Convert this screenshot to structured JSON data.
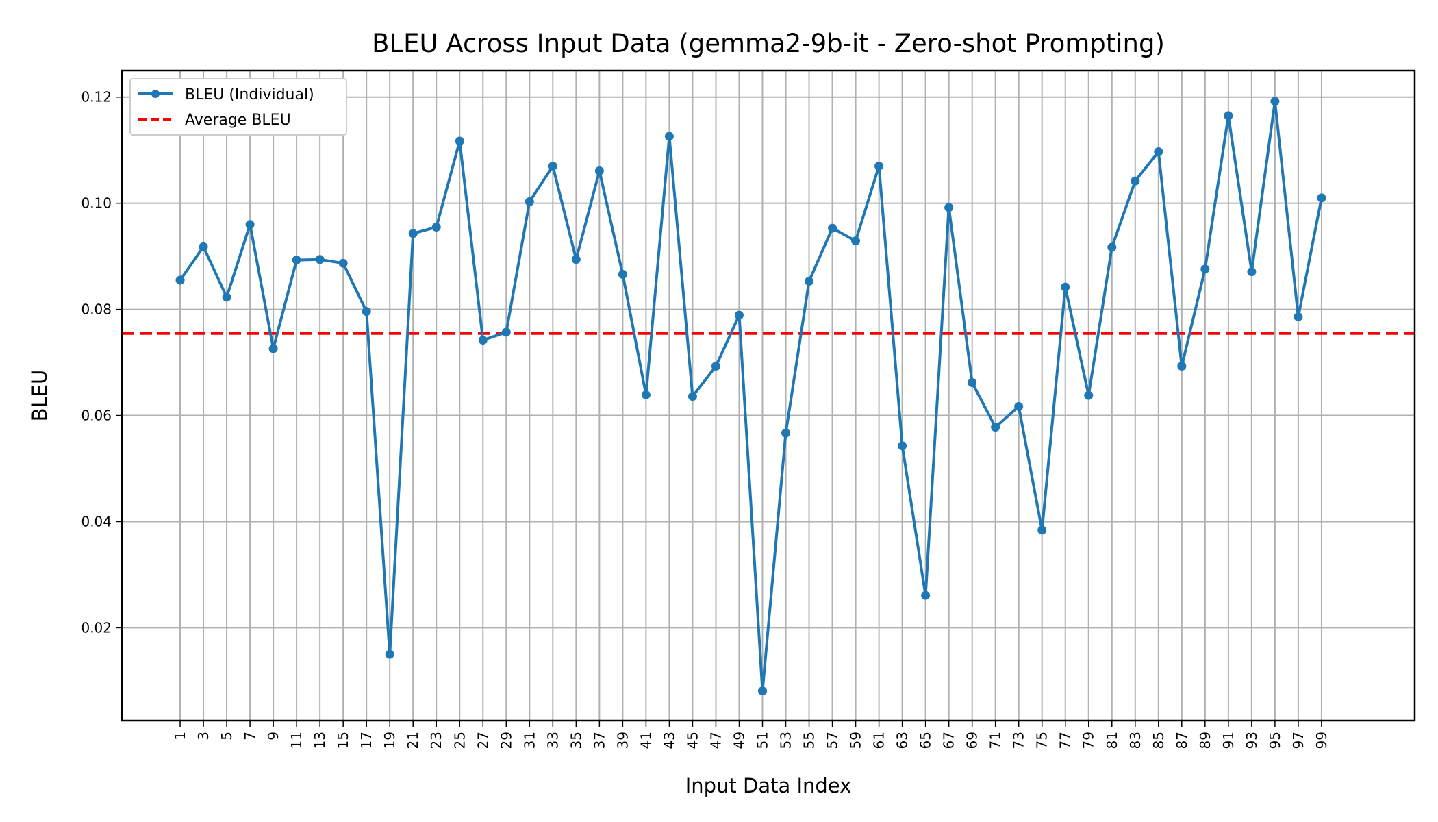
{
  "chart_data": {
    "type": "line",
    "title": "BLEU Across Input Data (gemma2-9b-it - Zero-shot Prompting)",
    "xlabel": "Input Data Index",
    "ylabel": "BLEU",
    "x": [
      1,
      3,
      5,
      7,
      9,
      11,
      13,
      15,
      17,
      19,
      21,
      23,
      25,
      27,
      29,
      31,
      33,
      35,
      37,
      39,
      41,
      43,
      45,
      47,
      49,
      51,
      53,
      55,
      57,
      59,
      61,
      63,
      65,
      67,
      69,
      71,
      73,
      75,
      77,
      79,
      81,
      83,
      85,
      87,
      89,
      91,
      93,
      95,
      97,
      99
    ],
    "x_tick_labels": [
      "1",
      "3",
      "5",
      "7",
      "9",
      "11",
      "13",
      "15",
      "17",
      "19",
      "21",
      "23",
      "25",
      "27",
      "29",
      "31",
      "33",
      "35",
      "37",
      "39",
      "41",
      "43",
      "45",
      "47",
      "49",
      "51",
      "53",
      "55",
      "57",
      "59",
      "61",
      "63",
      "65",
      "67",
      "69",
      "71",
      "73",
      "75",
      "77",
      "79",
      "81",
      "83",
      "85",
      "87",
      "89",
      "91",
      "93",
      "95",
      "97",
      "99"
    ],
    "xlim": [
      -4,
      107
    ],
    "ylim": [
      0.0025,
      0.125
    ],
    "y_ticks": [
      0.02,
      0.04,
      0.06,
      0.08,
      0.1,
      0.12
    ],
    "y_tick_labels": [
      "0.02",
      "0.04",
      "0.06",
      "0.08",
      "0.10",
      "0.12"
    ],
    "grid": true,
    "legend_position": "top-left",
    "series": [
      {
        "name": "BLEU (Individual)",
        "color": "#1f77b4",
        "style": "solid-with-markers",
        "values": [
          0.0855,
          0.0918,
          0.0823,
          0.096,
          0.0726,
          0.0893,
          0.0894,
          0.0887,
          0.0796,
          0.015,
          0.0943,
          0.0955,
          0.1117,
          0.0742,
          0.0757,
          0.1003,
          0.107,
          0.0894,
          0.1061,
          0.0866,
          0.0639,
          0.1126,
          0.0636,
          0.0693,
          0.0789,
          0.0081,
          0.0567,
          0.0853,
          0.0953,
          0.0929,
          0.107,
          0.0543,
          0.0261,
          0.0992,
          0.0662,
          0.0578,
          0.0617,
          0.0384,
          0.0842,
          0.0638,
          0.0917,
          0.1042,
          0.1097,
          0.0693,
          0.0876,
          0.1165,
          0.0871,
          0.1192,
          0.0786,
          0.101
        ]
      },
      {
        "name": "Average BLEU",
        "color": "#ff0000",
        "style": "dashed",
        "value": 0.0755
      }
    ]
  }
}
